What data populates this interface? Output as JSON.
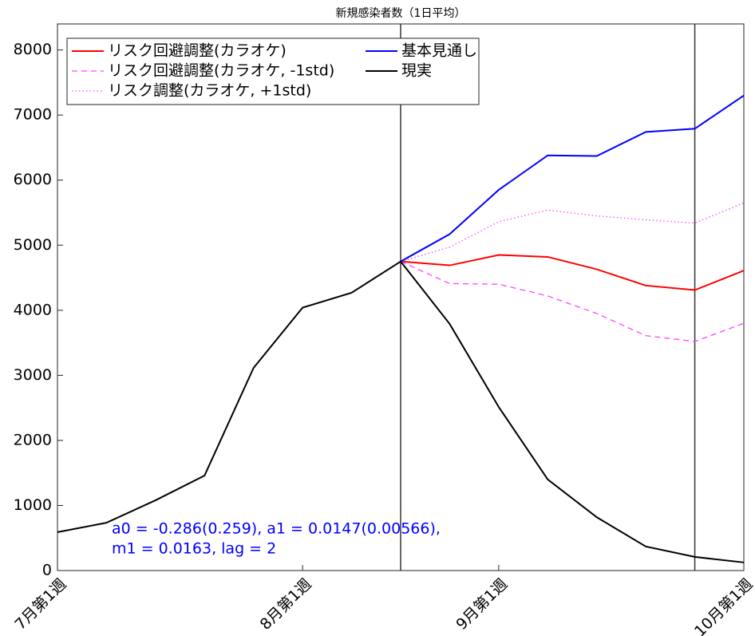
{
  "chart_data": {
    "type": "line",
    "title": "新規感染者数（1日平均）",
    "x": [
      1,
      2,
      3,
      4,
      5,
      6,
      7,
      8,
      9,
      10,
      11,
      12,
      13,
      14,
      15
    ],
    "xlim": [
      1,
      15
    ],
    "xticks": [
      {
        "value": 1,
        "label": "7月第1週"
      },
      {
        "value": 6,
        "label": "8月第1週"
      },
      {
        "value": 10,
        "label": "9月第1週"
      },
      {
        "value": 15,
        "label": "10月第1週"
      }
    ],
    "ylim": [
      0,
      8400
    ],
    "yticks": [
      0,
      1000,
      2000,
      3000,
      4000,
      5000,
      6000,
      7000,
      8000
    ],
    "vlines": [
      8,
      14
    ],
    "series": [
      {
        "name": "リスク回避調整(カラオケ)",
        "color": "#ff0000",
        "dash": "solid",
        "values": [
          null,
          null,
          null,
          null,
          null,
          null,
          null,
          4750,
          4690,
          4850,
          4820,
          4630,
          4380,
          4310,
          4610
        ]
      },
      {
        "name": "リスク回避調整(カラオケ, -1std)",
        "color": "#ff44ff",
        "dash": "dashed",
        "values": [
          null,
          null,
          null,
          null,
          null,
          null,
          null,
          4750,
          4410,
          4400,
          4220,
          3950,
          3610,
          3520,
          3800
        ]
      },
      {
        "name": "リスク調整(カラオケ, +1std)",
        "color": "#ff44ff",
        "dash": "dotted",
        "values": [
          null,
          null,
          null,
          null,
          null,
          null,
          null,
          4750,
          4970,
          5360,
          5540,
          5450,
          5390,
          5340,
          5650
        ]
      },
      {
        "name": "基本見通し",
        "color": "#0000ff",
        "dash": "solid",
        "values": [
          null,
          null,
          null,
          null,
          null,
          null,
          null,
          4750,
          5170,
          5850,
          6380,
          6370,
          6740,
          6790,
          7300
        ]
      },
      {
        "name": "現実",
        "color": "#000000",
        "dash": "solid",
        "values": [
          590,
          735,
          1080,
          1460,
          3115,
          4040,
          4270,
          4750,
          3790,
          2515,
          1400,
          820,
          370,
          210,
          125
        ]
      }
    ],
    "annotations": [
      "a0 = -0.286(0.259), a1 = 0.0147(0.00566),",
      "m1 = 0.0163, lag = 2"
    ]
  }
}
